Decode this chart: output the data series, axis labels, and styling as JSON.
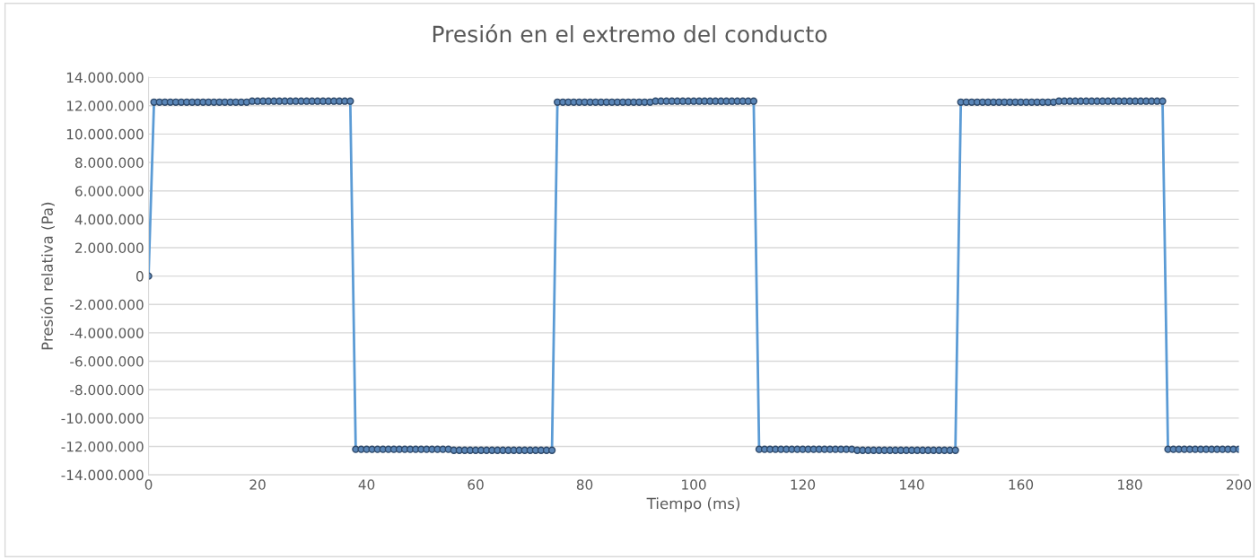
{
  "chart_data": {
    "type": "line",
    "title": "Presión en el extremo del conducto",
    "xlabel": "Tiempo (ms)",
    "ylabel": "Presión relativa (Pa)",
    "x": [
      0,
      1,
      2,
      3,
      4,
      5,
      6,
      7,
      8,
      9,
      10,
      11,
      12,
      13,
      14,
      15,
      16,
      17,
      18,
      19,
      20,
      21,
      22,
      23,
      24,
      25,
      26,
      27,
      28,
      29,
      30,
      31,
      32,
      33,
      34,
      35,
      36,
      37,
      38,
      39,
      40,
      41,
      42,
      43,
      44,
      45,
      46,
      47,
      48,
      49,
      50,
      51,
      52,
      53,
      54,
      55,
      56,
      57,
      58,
      59,
      60,
      61,
      62,
      63,
      64,
      65,
      66,
      67,
      68,
      69,
      70,
      71,
      72,
      73,
      74,
      75,
      76,
      77,
      78,
      79,
      80,
      81,
      82,
      83,
      84,
      85,
      86,
      87,
      88,
      89,
      90,
      91,
      92,
      93,
      94,
      95,
      96,
      97,
      98,
      99,
      100,
      101,
      102,
      103,
      104,
      105,
      106,
      107,
      108,
      109,
      110,
      111,
      112,
      113,
      114,
      115,
      116,
      117,
      118,
      119,
      120,
      121,
      122,
      123,
      124,
      125,
      126,
      127,
      128,
      129,
      130,
      131,
      132,
      133,
      134,
      135,
      136,
      137,
      138,
      139,
      140,
      141,
      142,
      143,
      144,
      145,
      146,
      147,
      148,
      149,
      150,
      151,
      152,
      153,
      154,
      155,
      156,
      157,
      158,
      159,
      160,
      161,
      162,
      163,
      164,
      165,
      166,
      167,
      168,
      169,
      170,
      171,
      172,
      173,
      174,
      175,
      176,
      177,
      178,
      179,
      180,
      181,
      182,
      183,
      184,
      185,
      186,
      187,
      188,
      189,
      190,
      191,
      192,
      193,
      194,
      195,
      196,
      197,
      198,
      199,
      200
    ],
    "series": [
      {
        "color": "#5b9bd5",
        "values": [
          0,
          12250000,
          12250000,
          12250000,
          12250000,
          12250000,
          12250000,
          12250000,
          12250000,
          12250000,
          12250000,
          12250000,
          12250000,
          12250000,
          12250000,
          12250000,
          12250000,
          12250000,
          12250000,
          12320000,
          12320000,
          12320000,
          12320000,
          12320000,
          12320000,
          12320000,
          12320000,
          12320000,
          12320000,
          12320000,
          12320000,
          12320000,
          12320000,
          12320000,
          12320000,
          12320000,
          12320000,
          12320000,
          -12200000,
          -12200000,
          -12200000,
          -12200000,
          -12200000,
          -12200000,
          -12200000,
          -12200000,
          -12200000,
          -12200000,
          -12200000,
          -12200000,
          -12200000,
          -12200000,
          -12200000,
          -12200000,
          -12200000,
          -12200000,
          -12270000,
          -12270000,
          -12270000,
          -12270000,
          -12270000,
          -12270000,
          -12270000,
          -12270000,
          -12270000,
          -12270000,
          -12270000,
          -12270000,
          -12270000,
          -12270000,
          -12270000,
          -12270000,
          -12270000,
          -12270000,
          -12270000,
          12250000,
          12250000,
          12250000,
          12250000,
          12250000,
          12250000,
          12250000,
          12250000,
          12250000,
          12250000,
          12250000,
          12250000,
          12250000,
          12250000,
          12250000,
          12250000,
          12250000,
          12250000,
          12320000,
          12320000,
          12320000,
          12320000,
          12320000,
          12320000,
          12320000,
          12320000,
          12320000,
          12320000,
          12320000,
          12320000,
          12320000,
          12320000,
          12320000,
          12320000,
          12320000,
          12320000,
          12320000,
          -12200000,
          -12200000,
          -12200000,
          -12200000,
          -12200000,
          -12200000,
          -12200000,
          -12200000,
          -12200000,
          -12200000,
          -12200000,
          -12200000,
          -12200000,
          -12200000,
          -12200000,
          -12200000,
          -12200000,
          -12200000,
          -12270000,
          -12270000,
          -12270000,
          -12270000,
          -12270000,
          -12270000,
          -12270000,
          -12270000,
          -12270000,
          -12270000,
          -12270000,
          -12270000,
          -12270000,
          -12270000,
          -12270000,
          -12270000,
          -12270000,
          -12270000,
          -12270000,
          12250000,
          12250000,
          12250000,
          12250000,
          12250000,
          12250000,
          12250000,
          12250000,
          12250000,
          12250000,
          12250000,
          12250000,
          12250000,
          12250000,
          12250000,
          12250000,
          12250000,
          12250000,
          12320000,
          12320000,
          12320000,
          12320000,
          12320000,
          12320000,
          12320000,
          12320000,
          12320000,
          12320000,
          12320000,
          12320000,
          12320000,
          12320000,
          12320000,
          12320000,
          12320000,
          12320000,
          12320000,
          12320000,
          -12200000,
          -12200000,
          -12200000,
          -12200000,
          -12200000,
          -12200000,
          -12200000,
          -12200000,
          -12200000,
          -12200000,
          -12200000,
          -12200000,
          -12200000,
          -12200000
        ]
      }
    ],
    "xlim": [
      0,
      200
    ],
    "xticks": [
      0,
      20,
      40,
      60,
      80,
      100,
      120,
      140,
      160,
      180,
      200
    ],
    "ylim": [
      -14000000,
      14000000
    ],
    "yticks": [
      {
        "value": -14000000,
        "label": "-14.000.000"
      },
      {
        "value": -12000000,
        "label": "-12.000.000"
      },
      {
        "value": -10000000,
        "label": "-10.000.000"
      },
      {
        "value": -8000000,
        "label": "-8.000.000"
      },
      {
        "value": -6000000,
        "label": "-6.000.000"
      },
      {
        "value": -4000000,
        "label": "-4.000.000"
      },
      {
        "value": -2000000,
        "label": "-2.000.000"
      },
      {
        "value": 0,
        "label": "0"
      },
      {
        "value": 2000000,
        "label": "2.000.000"
      },
      {
        "value": 4000000,
        "label": "4.000.000"
      },
      {
        "value": 6000000,
        "label": "6.000.000"
      },
      {
        "value": 8000000,
        "label": "8.000.000"
      },
      {
        "value": 10000000,
        "label": "10.000.000"
      },
      {
        "value": 12000000,
        "label": "12.000.000"
      },
      {
        "value": 14000000,
        "label": "14.000.000"
      }
    ],
    "grid": "y",
    "marker": "circle",
    "line_style": "solid"
  }
}
